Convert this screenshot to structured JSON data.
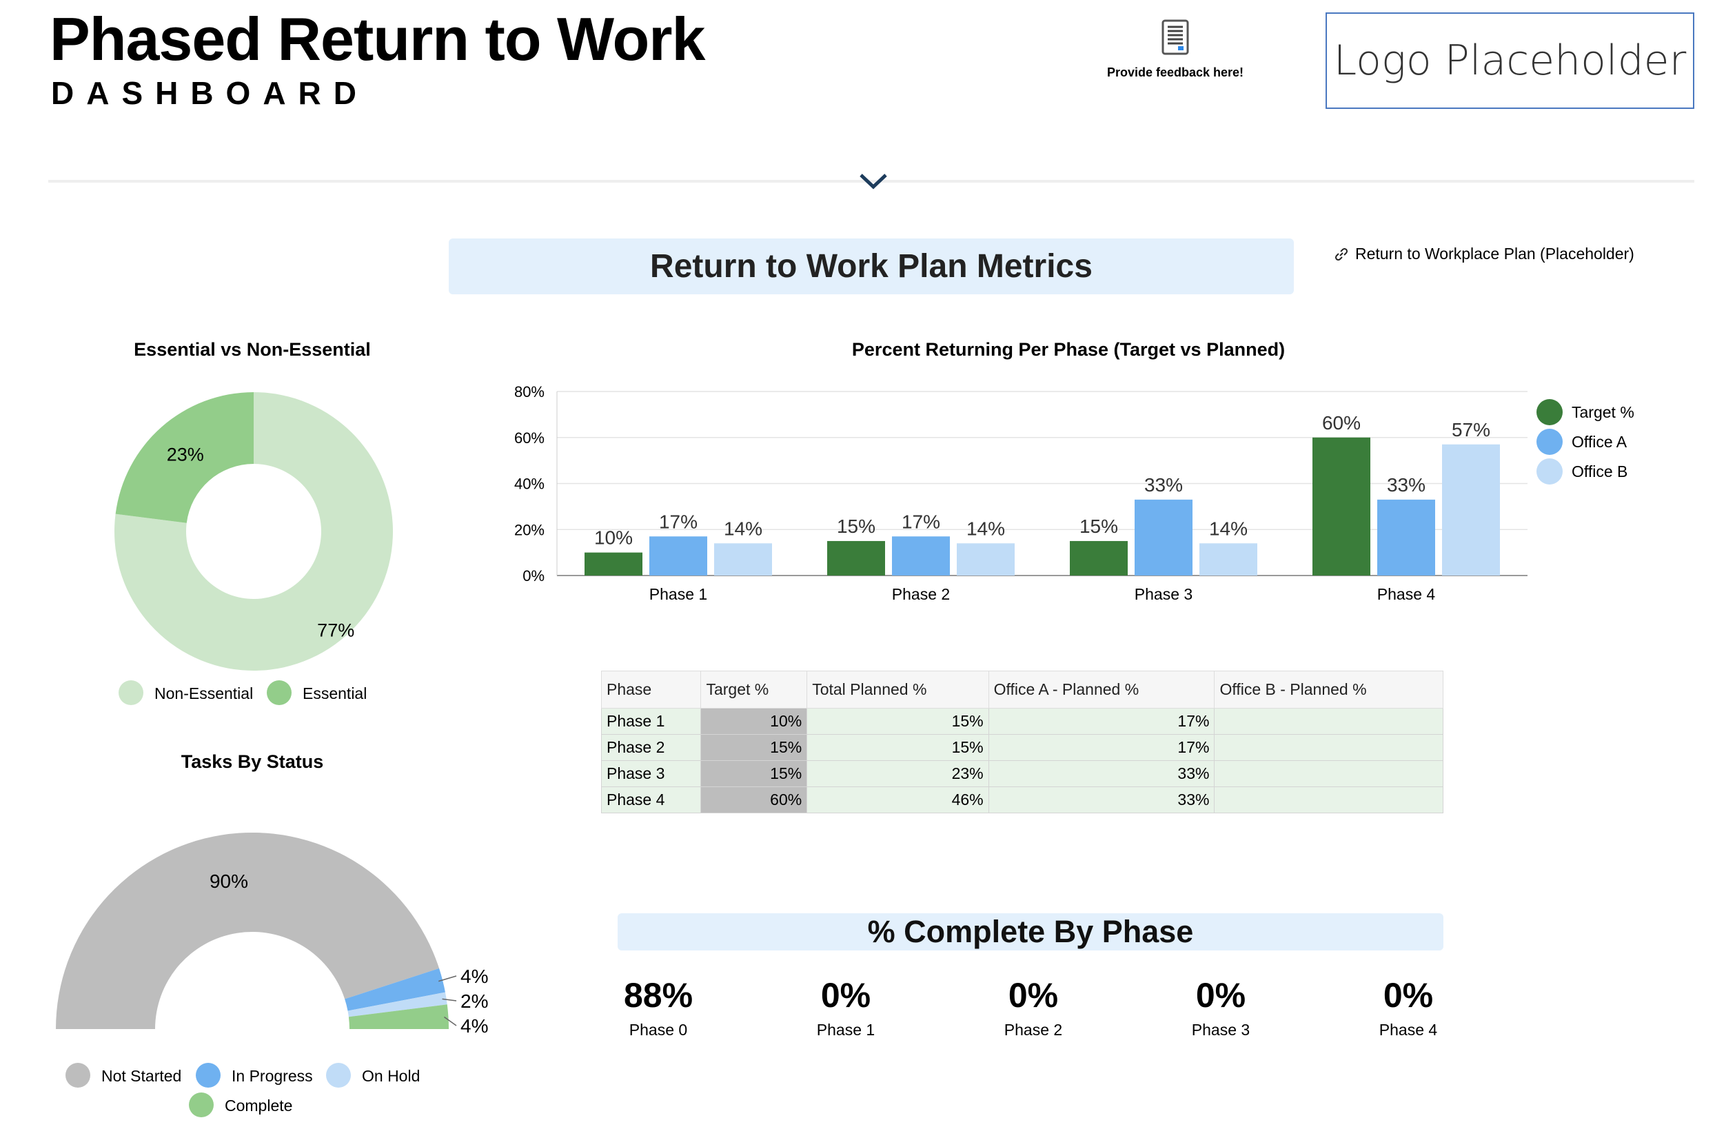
{
  "header": {
    "title": "Phased Return to Work",
    "subtitle": "DASHBOARD",
    "feedback_label": "Provide feedback here!",
    "logo_text": "Logo Placeholder"
  },
  "metrics_title": "Return to Work Plan Metrics",
  "link_label": "Return to Workplace Plan (Placeholder)",
  "colors": {
    "dark_green": "#3a7d3a",
    "light_green": "#93cd8a",
    "pale_green": "#cde6ca",
    "blue": "#6fb1f0",
    "light_blue": "#c0dcf7",
    "gray": "#bdbdbd",
    "banner": "#e3f0fc"
  },
  "chart_data": [
    {
      "type": "pie",
      "title": "Essential vs Non-Essential",
      "donut": true,
      "labels": [
        "Non-Essential",
        "Essential"
      ],
      "values": [
        77,
        23
      ],
      "data_labels": [
        "77%",
        "23%"
      ],
      "colors": [
        "#cde6ca",
        "#93cd8a"
      ],
      "legend": "bottom"
    },
    {
      "type": "bar",
      "title": "Percent Returning Per Phase (Target vs Planned)",
      "categories": [
        "Phase 1",
        "Phase 2",
        "Phase 3",
        "Phase 4"
      ],
      "series": [
        {
          "name": "Target %",
          "values": [
            10,
            15,
            15,
            60
          ],
          "color": "#3a7d3a"
        },
        {
          "name": "Office A",
          "values": [
            17,
            17,
            33,
            33
          ],
          "color": "#6fb1f0"
        },
        {
          "name": "Office B",
          "values": [
            14,
            14,
            14,
            57
          ],
          "color": "#c0dcf7"
        }
      ],
      "ylim": [
        0,
        80
      ],
      "yticks": [
        "0%",
        "20%",
        "40%",
        "60%",
        "80%"
      ],
      "legend": "right",
      "grid": true
    },
    {
      "type": "pie",
      "title": "Tasks By Status",
      "half_donut": true,
      "labels": [
        "Not Started",
        "In Progress",
        "On Hold",
        "Complete"
      ],
      "values": [
        90,
        4,
        2,
        4
      ],
      "data_labels": [
        "90%",
        "4%",
        "2%",
        "4%"
      ],
      "colors": [
        "#bdbdbd",
        "#6fb1f0",
        "#c0dcf7",
        "#93cd8a"
      ],
      "legend": "bottom"
    }
  ],
  "table": {
    "headers": [
      "Phase",
      "Target %",
      "Total Planned %",
      "Office A - Planned %",
      "Office B - Planned %"
    ],
    "rows": [
      [
        "Phase 1",
        "10%",
        "15%",
        "17%",
        ""
      ],
      [
        "Phase 2",
        "15%",
        "15%",
        "17%",
        ""
      ],
      [
        "Phase 3",
        "15%",
        "23%",
        "33%",
        ""
      ],
      [
        "Phase 4",
        "60%",
        "46%",
        "33%",
        ""
      ]
    ]
  },
  "complete": {
    "title": "% Complete By Phase",
    "items": [
      {
        "value": "88%",
        "label": "Phase 0"
      },
      {
        "value": "0%",
        "label": "Phase 1"
      },
      {
        "value": "0%",
        "label": "Phase 2"
      },
      {
        "value": "0%",
        "label": "Phase 3"
      },
      {
        "value": "0%",
        "label": "Phase 4"
      }
    ]
  }
}
